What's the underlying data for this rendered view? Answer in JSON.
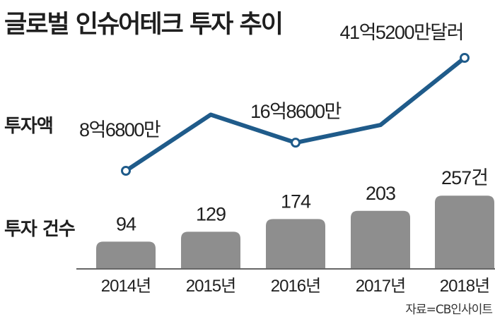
{
  "title": "글로벌 인슈어테크 투자 추이",
  "row_labels": {
    "amount": "투자액",
    "count": "투자 건수"
  },
  "source": "자료=CB인사이트",
  "colors": {
    "line": "#1f5b8a",
    "bar": "#8e8e8e",
    "axis": "#333333"
  },
  "chart_data": [
    {
      "type": "line",
      "title": "투자액",
      "x": [
        "2014년",
        "2015년",
        "2016년",
        "2017년",
        "2018년"
      ],
      "values": [
        8.68,
        25.0,
        16.86,
        22.0,
        41.52
      ],
      "unit": "억달러",
      "data_labels": [
        "8억6800만",
        "",
        "16억8600만",
        "",
        "41억5200만달러"
      ],
      "markers": [
        true,
        false,
        true,
        false,
        true
      ]
    },
    {
      "type": "bar",
      "title": "투자 건수",
      "categories": [
        "2014년",
        "2015년",
        "2016년",
        "2017년",
        "2018년"
      ],
      "values": [
        94,
        129,
        174,
        203,
        257
      ],
      "data_labels": [
        "94",
        "129",
        "174",
        "203",
        "257건"
      ]
    }
  ]
}
